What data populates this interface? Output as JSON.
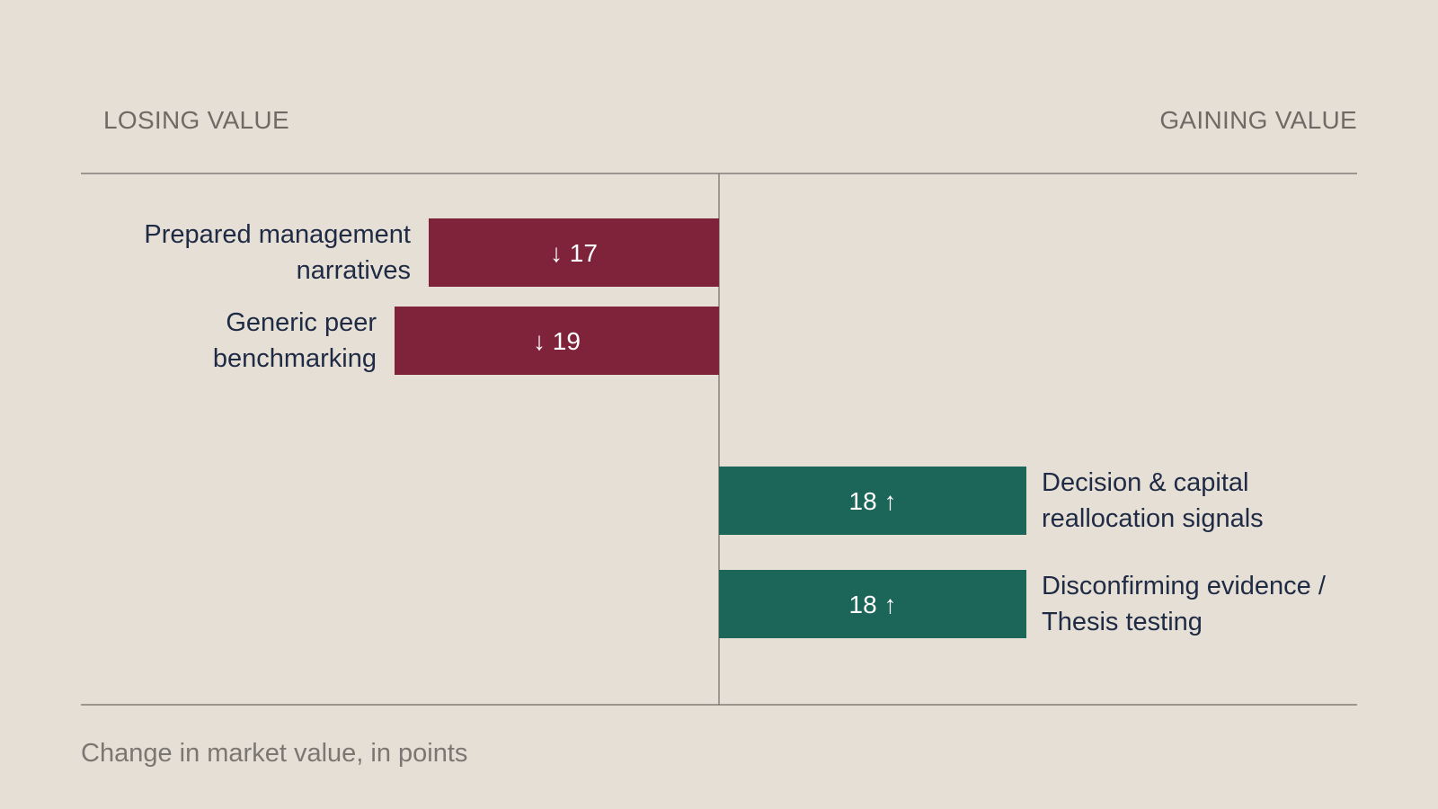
{
  "header": {
    "left_label": "LOSING VALUE",
    "right_label": "GAINING VALUE"
  },
  "footnote": "Change in market value, in points",
  "colors": {
    "background": "#e6dfd5",
    "negative": "#7e233a",
    "positive": "#1b6659",
    "label": "#1f2a44",
    "rule": "#6e6b66",
    "muted_text": "#6e6b66"
  },
  "chart_data": {
    "type": "bar",
    "orientation": "horizontal-diverging",
    "categories": [
      [
        "Prepared management",
        "narratives"
      ],
      [
        "Generic peer",
        "benchmarking"
      ],
      [
        "Decision & capital",
        "reallocation signals"
      ],
      [
        "Disconfirming evidence /",
        "Thesis testing"
      ]
    ],
    "values": [
      -17,
      -19,
      18,
      18
    ],
    "value_labels": [
      "↓ 17",
      "↓ 19",
      "18 ↑",
      "18 ↑"
    ],
    "title": "",
    "xlabel": "Change in market value, in points",
    "ylabel": "",
    "grid": false,
    "legend": "none"
  }
}
